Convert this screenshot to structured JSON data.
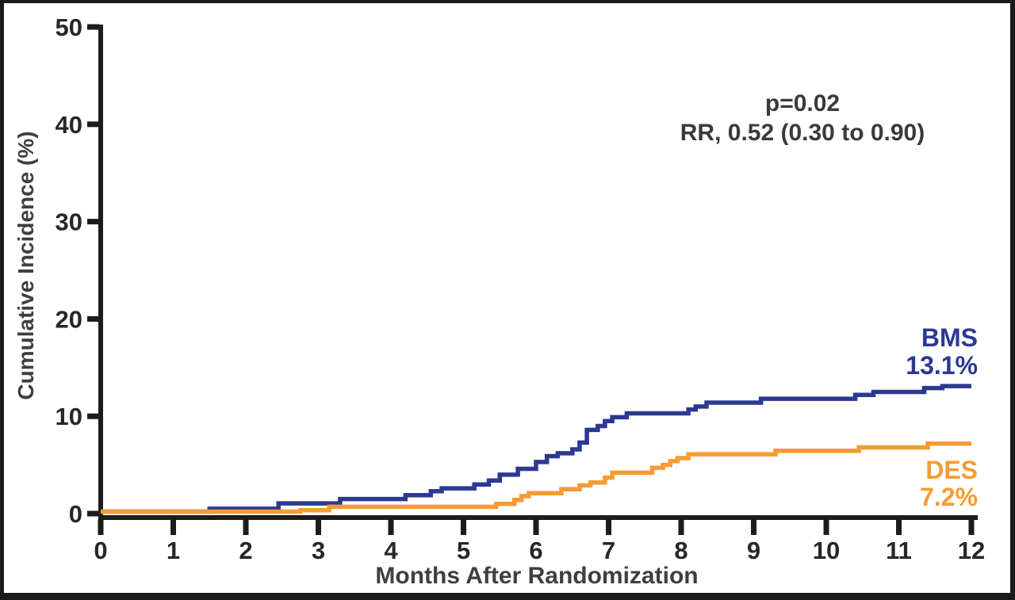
{
  "chart_data": {
    "type": "line",
    "subtype": "step-cumulative-incidence",
    "title": "",
    "xlabel": "Months After Randomization",
    "ylabel": "Cumulative Incidence (%)",
    "xlim": [
      0,
      12
    ],
    "ylim": [
      0,
      50
    ],
    "x_ticks": [
      0,
      1,
      2,
      3,
      4,
      5,
      6,
      7,
      8,
      9,
      10,
      11,
      12
    ],
    "y_ticks": [
      0,
      10,
      20,
      30,
      40,
      50
    ],
    "grid": false,
    "legend_position": "end-of-curve labels, right side",
    "annotation": {
      "line1": "p=0.02",
      "line2": "RR, 0.52 (0.30 to 0.90)"
    },
    "series": [
      {
        "name": "BMS",
        "final_value_label": "13.1%",
        "color": "#2B3990",
        "points": [
          [
            0,
            0.2
          ],
          [
            1.5,
            0.5
          ],
          [
            2.45,
            1.05
          ],
          [
            3.3,
            1.5
          ],
          [
            4.2,
            1.9
          ],
          [
            4.55,
            2.3
          ],
          [
            4.7,
            2.6
          ],
          [
            5.15,
            3.0
          ],
          [
            5.35,
            3.4
          ],
          [
            5.5,
            4.0
          ],
          [
            5.75,
            4.6
          ],
          [
            6.0,
            5.3
          ],
          [
            6.15,
            5.9
          ],
          [
            6.3,
            6.2
          ],
          [
            6.5,
            6.6
          ],
          [
            6.6,
            7.3
          ],
          [
            6.7,
            8.6
          ],
          [
            6.85,
            9.0
          ],
          [
            6.95,
            9.5
          ],
          [
            7.05,
            9.9
          ],
          [
            7.25,
            10.3
          ],
          [
            8.1,
            10.7
          ],
          [
            8.2,
            11.0
          ],
          [
            8.35,
            11.4
          ],
          [
            9.1,
            11.8
          ],
          [
            10.4,
            12.2
          ],
          [
            10.65,
            12.5
          ],
          [
            11.35,
            12.9
          ],
          [
            11.6,
            13.1
          ],
          [
            12,
            13.1
          ]
        ]
      },
      {
        "name": "DES",
        "final_value_label": "7.2%",
        "color": "#F59C33",
        "points": [
          [
            0,
            0.2
          ],
          [
            2.75,
            0.35
          ],
          [
            3.15,
            0.7
          ],
          [
            5.45,
            1.0
          ],
          [
            5.7,
            1.4
          ],
          [
            5.8,
            1.8
          ],
          [
            5.9,
            2.1
          ],
          [
            6.35,
            2.5
          ],
          [
            6.6,
            2.9
          ],
          [
            6.75,
            3.2
          ],
          [
            6.95,
            3.7
          ],
          [
            7.05,
            4.2
          ],
          [
            7.6,
            4.7
          ],
          [
            7.75,
            5.0
          ],
          [
            7.85,
            5.4
          ],
          [
            7.95,
            5.7
          ],
          [
            8.1,
            6.1
          ],
          [
            9.3,
            6.45
          ],
          [
            10.45,
            6.8
          ],
          [
            11.4,
            7.2
          ],
          [
            12,
            7.2
          ]
        ]
      }
    ]
  },
  "colors": {
    "figure_border": "#1b1b1b",
    "axis": "#1c1c1c",
    "tick_label_text": "#272727",
    "axis_title_text": "#3f3f3f",
    "annotation_text": "#3a3a3a",
    "background": "#ffffff"
  }
}
